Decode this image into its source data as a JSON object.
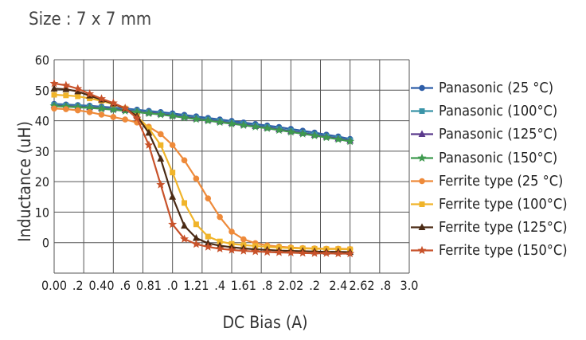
{
  "size_label": "Size : 7 x 7 mm",
  "chart_data": {
    "type": "line",
    "title": "",
    "xlabel": "DC Bias (A)",
    "ylabel": "Inductance (uH)",
    "xlim": [
      0,
      3.0
    ],
    "ylim": [
      -10,
      60
    ],
    "grid": true,
    "legend_position": "right",
    "x_tick_labels": [
      "0.00",
      ".2",
      "0.40",
      ".6",
      "0.81",
      ".0",
      "1.21",
      ".4",
      "1.61",
      ".8",
      "2.02",
      ".2",
      "2.4",
      "2.62",
      ".8",
      "3.0"
    ],
    "y_tick_labels": [
      "0",
      "10",
      "20",
      "30",
      "40",
      "50",
      "60"
    ],
    "x": [
      0.0,
      0.1,
      0.2,
      0.3,
      0.4,
      0.5,
      0.6,
      0.7,
      0.8,
      0.9,
      1.0,
      1.1,
      1.2,
      1.3,
      1.4,
      1.5,
      1.6,
      1.7,
      1.8,
      1.9,
      2.0,
      2.1,
      2.2,
      2.3,
      2.4,
      2.5
    ],
    "series": [
      {
        "name": "Panasonic  (25 °C)",
        "color": "#2e5ea8",
        "marker": "circle",
        "values": [
          45.5,
          45.3,
          45.1,
          44.9,
          44.6,
          44.3,
          44.0,
          43.6,
          43.2,
          42.8,
          42.4,
          41.9,
          41.4,
          40.9,
          40.4,
          39.9,
          39.4,
          38.9,
          38.4,
          37.9,
          37.3,
          36.7,
          36.1,
          35.4,
          34.8,
          34.0
        ]
      },
      {
        "name": "Panasonic  (100°C)",
        "color": "#3a94a8",
        "marker": "square",
        "values": [
          45.2,
          45.0,
          44.8,
          44.6,
          44.3,
          44.0,
          43.6,
          43.2,
          42.8,
          42.4,
          41.9,
          41.4,
          40.9,
          40.4,
          39.9,
          39.4,
          38.9,
          38.4,
          37.9,
          37.3,
          36.7,
          36.1,
          35.5,
          34.9,
          34.3,
          33.6
        ]
      },
      {
        "name": "Panasonic  (125°C)",
        "color": "#5b3a8c",
        "marker": "triangle",
        "values": [
          45.0,
          44.8,
          44.6,
          44.4,
          44.1,
          43.8,
          43.4,
          43.0,
          42.6,
          42.2,
          41.7,
          41.2,
          40.7,
          40.2,
          39.7,
          39.2,
          38.7,
          38.2,
          37.7,
          37.1,
          36.5,
          35.9,
          35.3,
          34.7,
          34.1,
          33.4
        ]
      },
      {
        "name": "Panasonic  (150°C)",
        "color": "#3f9a4f",
        "marker": "star",
        "values": [
          44.8,
          44.6,
          44.4,
          44.2,
          43.9,
          43.6,
          43.2,
          42.8,
          42.4,
          42.0,
          41.5,
          41.0,
          40.5,
          40.0,
          39.5,
          39.0,
          38.5,
          38.0,
          37.5,
          36.9,
          36.3,
          35.7,
          35.1,
          34.5,
          33.9,
          33.2
        ]
      },
      {
        "name": "Ferrite type (25 °C)",
        "color": "#ee8a3a",
        "marker": "circle",
        "values": [
          44.0,
          43.8,
          43.4,
          42.8,
          42.0,
          41.2,
          40.4,
          39.4,
          38.0,
          35.6,
          32.0,
          27.0,
          21.0,
          14.5,
          8.4,
          3.6,
          1.1,
          -0.2,
          -0.9,
          -1.3,
          -1.6,
          -1.8,
          -1.9,
          -2.0,
          -2.0,
          -2.1
        ]
      },
      {
        "name": "Ferrite type (100°C)",
        "color": "#f0b42a",
        "marker": "square",
        "values": [
          48.5,
          48.3,
          48.0,
          47.3,
          46.5,
          45.4,
          44.0,
          41.5,
          37.5,
          32.0,
          23.0,
          13.0,
          6.0,
          2.0,
          0.4,
          -0.4,
          -0.8,
          -1.1,
          -1.4,
          -1.6,
          -1.8,
          -1.9,
          -2.0,
          -2.1,
          -2.1,
          -2.2
        ]
      },
      {
        "name": "Ferrite type (125°C)",
        "color": "#4a2a14",
        "marker": "triangle",
        "values": [
          50.5,
          50.3,
          49.6,
          48.2,
          46.9,
          45.6,
          44.0,
          41.5,
          36.0,
          27.5,
          15.0,
          5.5,
          1.5,
          -0.2,
          -1.0,
          -1.5,
          -1.9,
          -2.2,
          -2.4,
          -2.6,
          -2.7,
          -2.8,
          -2.9,
          -3.0,
          -3.0,
          -3.1
        ]
      },
      {
        "name": "Ferrite type (150°C)",
        "color": "#c8522a",
        "marker": "star",
        "values": [
          52.2,
          51.6,
          50.5,
          48.8,
          47.2,
          45.8,
          44.1,
          40.8,
          32.0,
          19.0,
          6.0,
          1.2,
          -0.5,
          -1.4,
          -2.0,
          -2.4,
          -2.7,
          -2.9,
          -3.1,
          -3.2,
          -3.3,
          -3.4,
          -3.5,
          -3.5,
          -3.6,
          -3.6
        ]
      }
    ]
  }
}
